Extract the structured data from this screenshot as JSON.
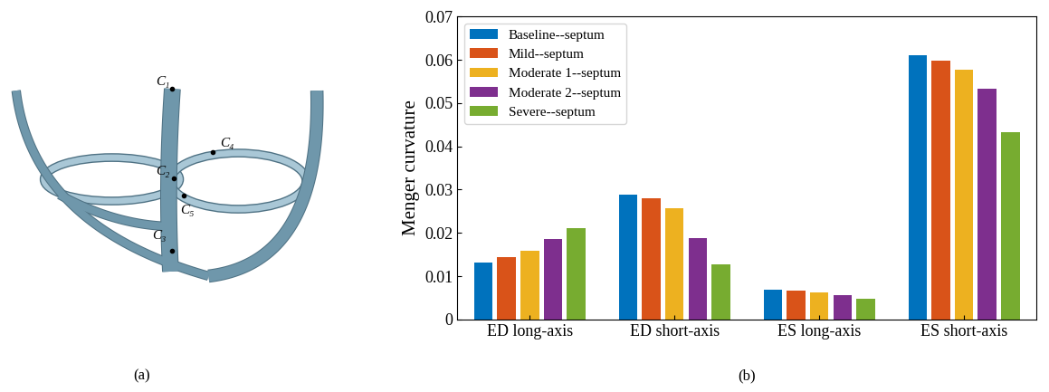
{
  "diagram": {
    "points": [
      {
        "label": "C₁"
      },
      {
        "label": "C₂"
      },
      {
        "label": "C₃"
      },
      {
        "label": "C₄"
      },
      {
        "label": "C₅"
      }
    ]
  },
  "captions": [
    "(a)",
    "(b)"
  ],
  "chart_data": {
    "type": "bar",
    "y_label": "Menger curvature",
    "categories": [
      "ED long-axis",
      "ED short-axis",
      "ES long-axis",
      "ES short-axis"
    ],
    "series": [
      {
        "name": "Baseline--septum",
        "color": "#0072BD",
        "values": [
          0.0132,
          0.0289,
          0.0068,
          0.061
        ]
      },
      {
        "name": "Mild--septum",
        "color": "#D95319",
        "values": [
          0.0145,
          0.0281,
          0.0066,
          0.0597
        ]
      },
      {
        "name": "Moderate 1--septum",
        "color": "#EDB120",
        "values": [
          0.0159,
          0.0256,
          0.0063,
          0.0578
        ]
      },
      {
        "name": "Moderate 2--septum",
        "color": "#7E2F8E",
        "values": [
          0.0186,
          0.0188,
          0.0057,
          0.0534
        ]
      },
      {
        "name": "Severe--septum",
        "color": "#77AC30",
        "values": [
          0.0212,
          0.0127,
          0.0048,
          0.0433
        ]
      }
    ],
    "ylim": [
      0,
      0.07
    ],
    "yticks": [
      0,
      0.01,
      0.02,
      0.03,
      0.04,
      0.05,
      0.06,
      0.07
    ],
    "grid": false,
    "legend": "upper left"
  }
}
